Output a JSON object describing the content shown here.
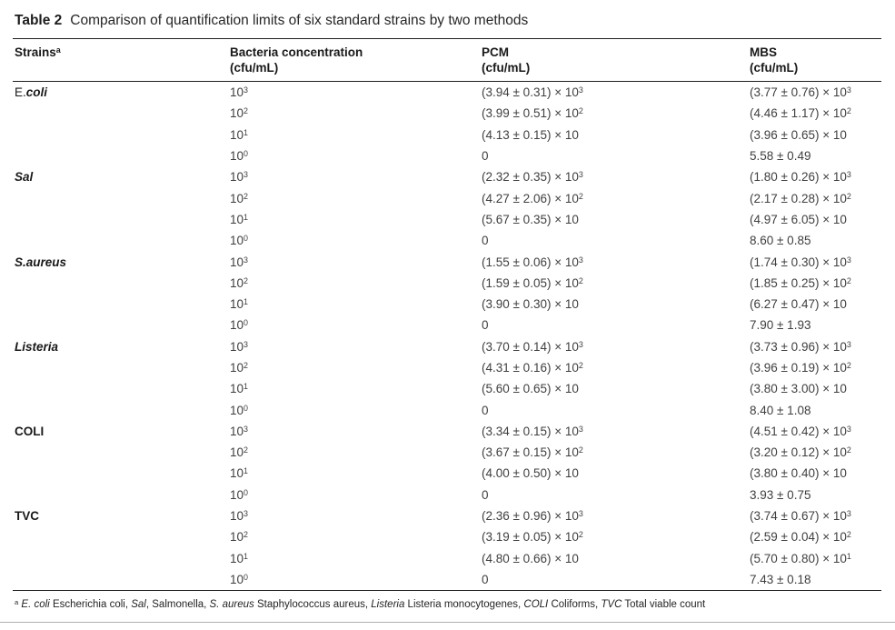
{
  "colors": {
    "text": "#2b2b2b",
    "heavy_rule": "#1e1e1e",
    "light_rule": "#b3b0ad",
    "background": "#ffffff"
  },
  "table": {
    "title_label": "Table 2",
    "title_text": "Comparison of quantification limits of six standard strains by two methods",
    "columns": [
      {
        "label": "Strains",
        "sup": "a",
        "unit": ""
      },
      {
        "label": "Bacteria concentration",
        "unit": "(cfu/mL)"
      },
      {
        "label": "PCM",
        "unit": "(cfu/mL)"
      },
      {
        "label": "MBS",
        "unit": "(cfu/mL)"
      }
    ],
    "groups": [
      {
        "strain_parts": [
          {
            "text": "E.",
            "bold": false,
            "italic": false
          },
          {
            "text": "coli",
            "bold": true,
            "italic": true
          }
        ],
        "rows": [
          {
            "conc": {
              "base": "10",
              "exp": "3"
            },
            "pcm": {
              "base": "(3.94 ± 0.31) × 10",
              "exp": "3"
            },
            "mbs": {
              "base": "(3.77 ± 0.76) × 10",
              "exp": "3"
            }
          },
          {
            "conc": {
              "base": "10",
              "exp": "2"
            },
            "pcm": {
              "base": "(3.99 ± 0.51) × 10",
              "exp": "2"
            },
            "mbs": {
              "base": "(4.46 ± 1.17) × 10",
              "exp": "2"
            }
          },
          {
            "conc": {
              "base": "10",
              "exp": "1"
            },
            "pcm": {
              "base": "(4.13 ± 0.15) × 10",
              "exp": ""
            },
            "mbs": {
              "base": "(3.96 ± 0.65) × 10",
              "exp": ""
            }
          },
          {
            "conc": {
              "base": "10",
              "exp": "0"
            },
            "pcm": {
              "base": "0",
              "exp": ""
            },
            "mbs": {
              "base": "5.58 ± 0.49",
              "exp": ""
            }
          }
        ]
      },
      {
        "strain_parts": [
          {
            "text": "Sal",
            "bold": true,
            "italic": true
          }
        ],
        "rows": [
          {
            "conc": {
              "base": "10",
              "exp": "3"
            },
            "pcm": {
              "base": "(2.32 ± 0.35) × 10",
              "exp": "3"
            },
            "mbs": {
              "base": "(1.80 ± 0.26) × 10",
              "exp": "3"
            }
          },
          {
            "conc": {
              "base": "10",
              "exp": "2"
            },
            "pcm": {
              "base": "(4.27 ± 2.06) × 10",
              "exp": "2"
            },
            "mbs": {
              "base": "(2.17 ± 0.28) × 10",
              "exp": "2"
            }
          },
          {
            "conc": {
              "base": "10",
              "exp": "1"
            },
            "pcm": {
              "base": "(5.67 ± 0.35) × 10",
              "exp": ""
            },
            "mbs": {
              "base": "(4.97 ± 6.05) × 10",
              "exp": ""
            }
          },
          {
            "conc": {
              "base": "10",
              "exp": "0"
            },
            "pcm": {
              "base": "0",
              "exp": ""
            },
            "mbs": {
              "base": "8.60 ± 0.85",
              "exp": ""
            }
          }
        ]
      },
      {
        "strain_parts": [
          {
            "text": "S.aureus",
            "bold": true,
            "italic": true
          }
        ],
        "rows": [
          {
            "conc": {
              "base": "10",
              "exp": "3"
            },
            "pcm": {
              "base": "(1.55 ± 0.06) × 10",
              "exp": "3"
            },
            "mbs": {
              "base": "(1.74 ± 0.30) × 10",
              "exp": "3"
            }
          },
          {
            "conc": {
              "base": "10",
              "exp": "2"
            },
            "pcm": {
              "base": "(1.59 ± 0.05) × 10",
              "exp": "2"
            },
            "mbs": {
              "base": "(1.85 ± 0.25) × 10",
              "exp": "2"
            }
          },
          {
            "conc": {
              "base": "10",
              "exp": "1"
            },
            "pcm": {
              "base": "(3.90 ± 0.30) × 10",
              "exp": ""
            },
            "mbs": {
              "base": "(6.27 ± 0.47) × 10",
              "exp": ""
            }
          },
          {
            "conc": {
              "base": "10",
              "exp": "0"
            },
            "pcm": {
              "base": "0",
              "exp": ""
            },
            "mbs": {
              "base": "7.90 ± 1.93",
              "exp": ""
            }
          }
        ]
      },
      {
        "strain_parts": [
          {
            "text": "Listeria",
            "bold": true,
            "italic": true
          }
        ],
        "rows": [
          {
            "conc": {
              "base": "10",
              "exp": "3"
            },
            "pcm": {
              "base": "(3.70 ± 0.14) × 10",
              "exp": "3"
            },
            "mbs": {
              "base": "(3.73 ± 0.96) × 10",
              "exp": "3"
            }
          },
          {
            "conc": {
              "base": "10",
              "exp": "2"
            },
            "pcm": {
              "base": "(4.31 ± 0.16) × 10",
              "exp": "2"
            },
            "mbs": {
              "base": "(3.96 ± 0.19) × 10",
              "exp": "2"
            }
          },
          {
            "conc": {
              "base": "10",
              "exp": "1"
            },
            "pcm": {
              "base": "(5.60 ± 0.65) × 10",
              "exp": ""
            },
            "mbs": {
              "base": "(3.80 ± 3.00) × 10",
              "exp": ""
            }
          },
          {
            "conc": {
              "base": "10",
              "exp": "0"
            },
            "pcm": {
              "base": "0",
              "exp": ""
            },
            "mbs": {
              "base": "8.40 ± 1.08",
              "exp": ""
            }
          }
        ]
      },
      {
        "strain_parts": [
          {
            "text": "COLI",
            "bold": true,
            "italic": false
          }
        ],
        "rows": [
          {
            "conc": {
              "base": "10",
              "exp": "3"
            },
            "pcm": {
              "base": "(3.34 ± 0.15) × 10",
              "exp": "3"
            },
            "mbs": {
              "base": "(4.51 ± 0.42) × 10",
              "exp": "3"
            }
          },
          {
            "conc": {
              "base": "10",
              "exp": "2"
            },
            "pcm": {
              "base": "(3.67 ± 0.15) × 10",
              "exp": "2"
            },
            "mbs": {
              "base": "(3.20 ± 0.12) × 10",
              "exp": "2"
            }
          },
          {
            "conc": {
              "base": "10",
              "exp": "1"
            },
            "pcm": {
              "base": "(4.00 ± 0.50) × 10",
              "exp": ""
            },
            "mbs": {
              "base": "(3.80 ± 0.40) × 10",
              "exp": ""
            }
          },
          {
            "conc": {
              "base": "10",
              "exp": "0"
            },
            "pcm": {
              "base": "0",
              "exp": ""
            },
            "mbs": {
              "base": "3.93 ± 0.75",
              "exp": ""
            }
          }
        ]
      },
      {
        "strain_parts": [
          {
            "text": "TVC",
            "bold": true,
            "italic": false
          }
        ],
        "rows": [
          {
            "conc": {
              "base": "10",
              "exp": "3"
            },
            "pcm": {
              "base": "(2.36 ± 0.96) × 10",
              "exp": "3"
            },
            "mbs": {
              "base": "(3.74 ± 0.67) × 10",
              "exp": "3"
            }
          },
          {
            "conc": {
              "base": "10",
              "exp": "2"
            },
            "pcm": {
              "base": "(3.19 ± 0.05) × 10",
              "exp": "2"
            },
            "mbs": {
              "base": "(2.59 ± 0.04) × 10",
              "exp": "2"
            }
          },
          {
            "conc": {
              "base": "10",
              "exp": "1"
            },
            "pcm": {
              "base": "(4.80 ± 0.66) × 10",
              "exp": ""
            },
            "mbs": {
              "base": "(5.70 ± 0.80) × 10",
              "exp": "1"
            }
          },
          {
            "conc": {
              "base": "10",
              "exp": "0"
            },
            "pcm": {
              "base": "0",
              "exp": ""
            },
            "mbs": {
              "base": "7.43 ± 0.18",
              "exp": ""
            }
          }
        ]
      }
    ],
    "footnote": {
      "marker": "a",
      "parts": [
        {
          "text": "E. coli",
          "italic": true
        },
        {
          "text": " Escherichia coli, ",
          "italic": false
        },
        {
          "text": "Sal",
          "italic": true
        },
        {
          "text": ", Salmonella, ",
          "italic": false
        },
        {
          "text": "S. aureus",
          "italic": true
        },
        {
          "text": " Staphylococcus aureus, ",
          "italic": false
        },
        {
          "text": "Listeria",
          "italic": true
        },
        {
          "text": " Listeria monocytogenes, ",
          "italic": false
        },
        {
          "text": "COLI",
          "italic": true
        },
        {
          "text": " Coliforms, ",
          "italic": false
        },
        {
          "text": "TVC",
          "italic": true
        },
        {
          "text": " Total viable count",
          "italic": false
        }
      ]
    }
  }
}
